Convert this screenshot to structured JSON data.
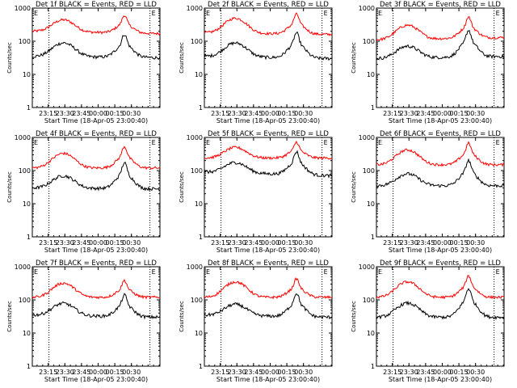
{
  "chart_data": [
    {
      "type": "line",
      "title": "Det 1f BLACK = Events, RED = LLD",
      "xlabel": "Start Time (18-Apr-05 23:00:40)",
      "ylabel": "Counts/sec",
      "yscale": "log",
      "ylim": [
        1,
        1000
      ],
      "x_ticks": [
        "23:15",
        "23:30",
        "23:45",
        "00:00",
        "00:15",
        "00:30"
      ],
      "events": {
        "base": 35,
        "hump_peak": 90,
        "spike_peak": 170,
        "end": 32
      },
      "lld": {
        "base": 200,
        "hump_peak": 450,
        "spike_peak": 650,
        "end": 170
      },
      "markers": [
        15,
        106
      ]
    },
    {
      "type": "line",
      "title": "Det 2f BLACK = Events, RED = LLD",
      "xlabel": "Start Time (18-Apr-05 23:00:40)",
      "ylabel": "Counts/sec",
      "yscale": "log",
      "ylim": [
        1,
        1000
      ],
      "x_ticks": [
        "23:15",
        "23:30",
        "23:45",
        "00:00",
        "00:15",
        "00:30"
      ],
      "events": {
        "base": 35,
        "hump_peak": 90,
        "spike_peak": 190,
        "end": 30
      },
      "lld": {
        "base": 180,
        "hump_peak": 500,
        "spike_peak": 700,
        "end": 160
      },
      "markers": [
        15,
        106
      ]
    },
    {
      "type": "line",
      "title": "Det 3f BLACK = Events, RED = LLD",
      "xlabel": "Start Time (18-Apr-05 23:00:40)",
      "ylabel": "Counts/sec",
      "yscale": "log",
      "ylim": [
        1,
        1000
      ],
      "x_ticks": [
        "23:15",
        "23:30",
        "23:45",
        "00:00",
        "00:15",
        "00:30"
      ],
      "events": {
        "base": 30,
        "hump_peak": 70,
        "spike_peak": 220,
        "end": 35
      },
      "lld": {
        "base": 110,
        "hump_peak": 300,
        "spike_peak": 550,
        "end": 130
      },
      "markers": [
        15,
        106
      ]
    },
    {
      "type": "line",
      "title": "Det 4f BLACK = Events, RED = LLD",
      "xlabel": "Start Time (18-Apr-05 23:00:40)",
      "ylabel": "Counts/sec",
      "yscale": "log",
      "ylim": [
        1,
        1000
      ],
      "x_ticks": [
        "23:15",
        "23:30",
        "23:45",
        "00:00",
        "00:15",
        "00:30"
      ],
      "events": {
        "base": 30,
        "hump_peak": 70,
        "spike_peak": 180,
        "end": 28
      },
      "lld": {
        "base": 120,
        "hump_peak": 330,
        "spike_peak": 550,
        "end": 120
      },
      "markers": [
        15,
        106
      ]
    },
    {
      "type": "line",
      "title": "Det 5f BLACK = Events, RED = LLD",
      "xlabel": "Start Time (18-Apr-05 23:00:40)",
      "ylabel": "Counts/sec",
      "yscale": "log",
      "ylim": [
        1,
        1000
      ],
      "x_ticks": [
        "23:15",
        "23:30",
        "23:45",
        "00:00",
        "00:15",
        "00:30"
      ],
      "events": {
        "base": 90,
        "hump_peak": 180,
        "spike_peak": 400,
        "end": 70
      },
      "lld": {
        "base": 240,
        "hump_peak": 500,
        "spike_peak": 750,
        "end": 240
      },
      "markers": [
        15,
        106
      ]
    },
    {
      "type": "line",
      "title": "Det 6f BLACK = Events, RED = LLD",
      "xlabel": "Start Time (18-Apr-05 23:00:40)",
      "ylabel": "Counts/sec",
      "yscale": "log",
      "ylim": [
        1,
        1000
      ],
      "x_ticks": [
        "23:15",
        "23:30",
        "23:45",
        "00:00",
        "00:15",
        "00:30"
      ],
      "events": {
        "base": 35,
        "hump_peak": 80,
        "spike_peak": 210,
        "end": 35
      },
      "lld": {
        "base": 150,
        "hump_peak": 420,
        "spike_peak": 700,
        "end": 150
      },
      "markers": [
        15,
        106
      ]
    },
    {
      "type": "line",
      "title": "Det 7f BLACK = Events, RED = LLD",
      "xlabel": "Start Time (18-Apr-05 23:00:40)",
      "ylabel": "Counts/sec",
      "yscale": "log",
      "ylim": [
        1,
        1000
      ],
      "x_ticks": [
        "23:15",
        "23:30",
        "23:45",
        "00:00",
        "00:15",
        "00:30"
      ],
      "events": {
        "base": 35,
        "hump_peak": 80,
        "spike_peak": 150,
        "end": 30
      },
      "lld": {
        "base": 120,
        "hump_peak": 320,
        "spike_peak": 400,
        "end": 120
      },
      "markers": [
        15,
        106
      ]
    },
    {
      "type": "line",
      "title": "Det 8f BLACK = Events, RED = LLD",
      "xlabel": "Start Time (18-Apr-05 23:00:40)",
      "ylabel": "Counts/sec",
      "yscale": "log",
      "ylim": [
        1,
        1000
      ],
      "x_ticks": [
        "23:15",
        "23:30",
        "23:45",
        "00:00",
        "00:15",
        "00:30"
      ],
      "events": {
        "base": 35,
        "hump_peak": 75,
        "spike_peak": 170,
        "end": 30
      },
      "lld": {
        "base": 120,
        "hump_peak": 350,
        "spike_peak": 450,
        "end": 120
      },
      "markers": [
        15,
        106
      ]
    },
    {
      "type": "line",
      "title": "Det 9f BLACK = Events, RED = LLD",
      "xlabel": "Start Time (18-Apr-05 23:00:40)",
      "ylabel": "Counts/sec",
      "yscale": "log",
      "ylim": [
        1,
        1000
      ],
      "x_ticks": [
        "23:15",
        "23:30",
        "23:45",
        "00:00",
        "00:15",
        "00:30"
      ],
      "events": {
        "base": 30,
        "hump_peak": 80,
        "spike_peak": 230,
        "end": 30
      },
      "lld": {
        "base": 120,
        "hump_peak": 350,
        "spike_peak": 550,
        "end": 120
      },
      "markers": [
        15,
        106
      ]
    }
  ],
  "y_ticks": [
    "1",
    "10",
    "100",
    "1000"
  ],
  "marker_label": "E"
}
